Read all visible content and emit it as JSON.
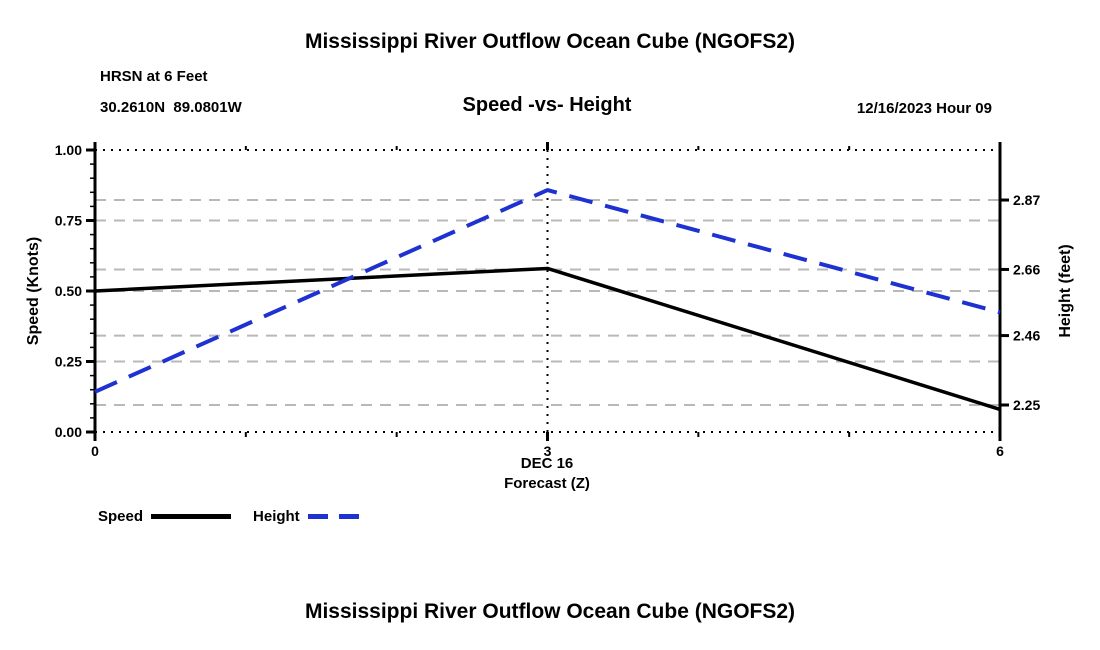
{
  "page": {
    "title_top": "Mississippi River Outflow Ocean Cube (NGOFS2)",
    "title_bottom": "Mississippi River Outflow Ocean Cube (NGOFS2)"
  },
  "header": {
    "station": "HRSN at 6 Feet",
    "coordinates": "30.2610N  89.0801W",
    "subtitle": "Speed -vs- Height",
    "datetime": "12/16/2023 Hour 09"
  },
  "chart_data": {
    "type": "line",
    "title": "Speed -vs- Height",
    "x_range": [
      0,
      6
    ],
    "x": [
      0,
      3,
      6
    ],
    "x_ticks": [
      "0",
      "3",
      "6"
    ],
    "xlabel_line1": "DEC 16",
    "xlabel_line2": "Forecast (Z)",
    "left_axis": {
      "label": "Speed (Knots)",
      "range": [
        0,
        1
      ],
      "tick_values": [
        0,
        0.25,
        0.5,
        0.75,
        1
      ],
      "ticks": [
        "0.00",
        "0.25",
        "0.50",
        "0.75",
        "1.00"
      ]
    },
    "right_axis": {
      "label": "Height (feet)",
      "tick_values": [
        2.25,
        2.46,
        2.66,
        2.87
      ],
      "ticks": [
        "2.25",
        "2.46",
        "2.66",
        "2.87"
      ]
    },
    "series": [
      {
        "name": "Speed",
        "axis": "left",
        "color": "#000000",
        "style": "solid",
        "values": [
          0.5,
          0.58,
          0.08
        ]
      },
      {
        "name": "Height",
        "axis": "right",
        "color": "#1e32d2",
        "style": "dashed",
        "values": [
          2.29,
          2.9,
          2.53
        ]
      }
    ],
    "legend": [
      {
        "label": "Speed",
        "color": "#000000",
        "style": "solid"
      },
      {
        "label": "Height",
        "color": "#1e32d2",
        "style": "dashed"
      }
    ],
    "grid": {
      "horizontal": "dashed-gray",
      "border_top_bottom": "dotted-black",
      "vline_at_x": 3
    }
  }
}
